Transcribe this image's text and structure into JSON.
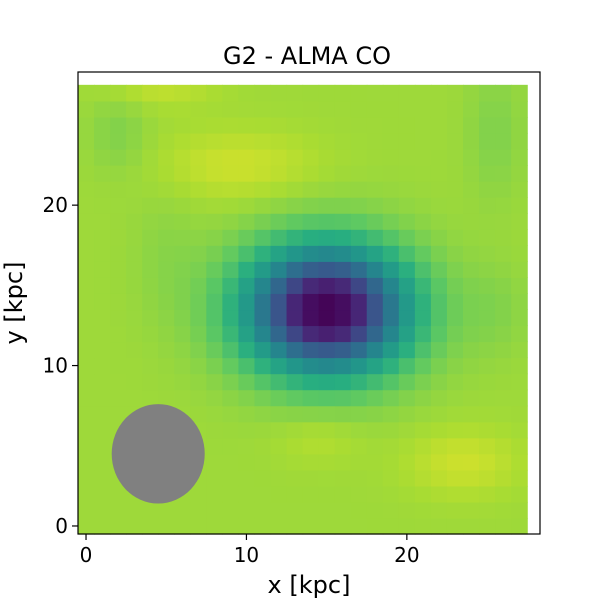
{
  "chart_data": {
    "type": "heatmap",
    "title": "G2 - ALMA CO",
    "xlabel": "x [kpc]",
    "ylabel": "y [kpc]",
    "xlim": [
      -0.5,
      28.3
    ],
    "ylim": [
      -0.5,
      28.3
    ],
    "xticks": [
      0,
      10,
      20
    ],
    "yticks": [
      0,
      10,
      20
    ],
    "colormap": "viridis",
    "value_range": [
      0,
      1
    ],
    "grid_size": 28,
    "grid_spacing_kpc": 1.0,
    "background_level": 0.86,
    "features": [
      {
        "kind": "depression",
        "center": [
          15.0,
          13.5
        ],
        "sigma": [
          3.6,
          2.8
        ],
        "depth": 0.86
      },
      {
        "kind": "bright",
        "center": [
          9.5,
          22.5
        ],
        "sigma": [
          3.5,
          1.6
        ],
        "amplitude": 0.07
      },
      {
        "kind": "bright",
        "center": [
          4.5,
          28.0
        ],
        "sigma": [
          2.5,
          1.2
        ],
        "amplitude": 0.07
      },
      {
        "kind": "bright",
        "center": [
          23.5,
          4.0
        ],
        "sigma": [
          2.5,
          1.5
        ],
        "amplitude": 0.07
      },
      {
        "kind": "bright",
        "center": [
          14.5,
          5.5
        ],
        "sigma": [
          2.0,
          1.2
        ],
        "amplitude": 0.04
      },
      {
        "kind": "dim",
        "center": [
          2.0,
          24.5
        ],
        "sigma": [
          1.3,
          1.8
        ],
        "amplitude": 0.05
      },
      {
        "kind": "dim",
        "center": [
          25.5,
          24.5
        ],
        "sigma": [
          1.2,
          3.0
        ],
        "amplitude": 0.05
      },
      {
        "kind": "dim",
        "center": [
          25.5,
          13.5
        ],
        "sigma": [
          1.5,
          2.0
        ],
        "amplitude": 0.04
      },
      {
        "kind": "dim",
        "center": [
          5.0,
          17.0
        ],
        "sigma": [
          1.5,
          3.0
        ],
        "amplitude": 0.03
      }
    ],
    "beam": {
      "center": [
        4.5,
        4.5
      ],
      "major_kpc": 5.8,
      "minor_kpc": 6.2,
      "color": "#808080"
    }
  }
}
